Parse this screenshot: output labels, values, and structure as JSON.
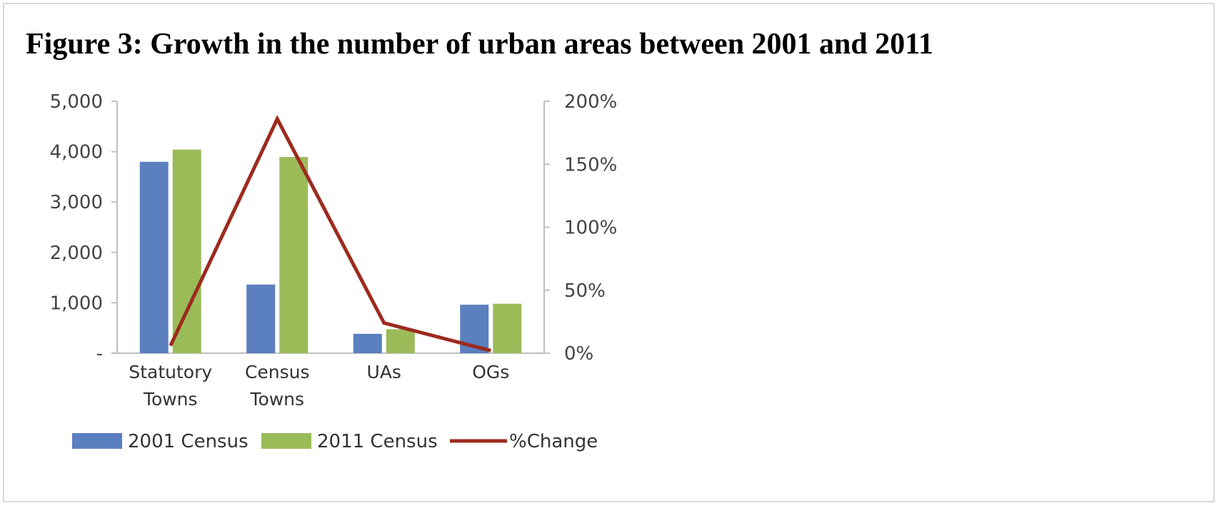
{
  "figure": {
    "title": "Figure 3: Growth in the number of urban areas between 2001 and 2011"
  },
  "chart_data": {
    "type": "bar",
    "categories": [
      [
        "Statutory",
        "Towns"
      ],
      [
        "Census",
        "Towns"
      ],
      [
        "UAs"
      ],
      [
        "OGs"
      ]
    ],
    "series": [
      {
        "name": "2001 Census",
        "kind": "bar",
        "axis": "left",
        "color": "#5b7fbf",
        "values": [
          3799,
          1362,
          384,
          962
        ]
      },
      {
        "name": "2011 Census",
        "kind": "bar",
        "axis": "left",
        "color": "#9bbb59",
        "values": [
          4041,
          3894,
          475,
          981
        ]
      },
      {
        "name": "%Change",
        "kind": "line",
        "axis": "right",
        "color": "#9c2b1e",
        "values": [
          6,
          186,
          24,
          2
        ]
      }
    ],
    "left_axis": {
      "ylim": [
        0,
        5000
      ],
      "ticks": [
        0,
        1000,
        2000,
        3000,
        4000,
        5000
      ],
      "tick_labels": [
        "-",
        "1,000",
        "2,000",
        "3,000",
        "4,000",
        "5,000"
      ]
    },
    "right_axis": {
      "ylim": [
        0,
        200
      ],
      "ticks": [
        0,
        50,
        100,
        150,
        200
      ],
      "tick_labels": [
        "0%",
        "50%",
        "100%",
        "150%",
        "200%"
      ]
    },
    "grid": false,
    "legend_position": "bottom"
  }
}
